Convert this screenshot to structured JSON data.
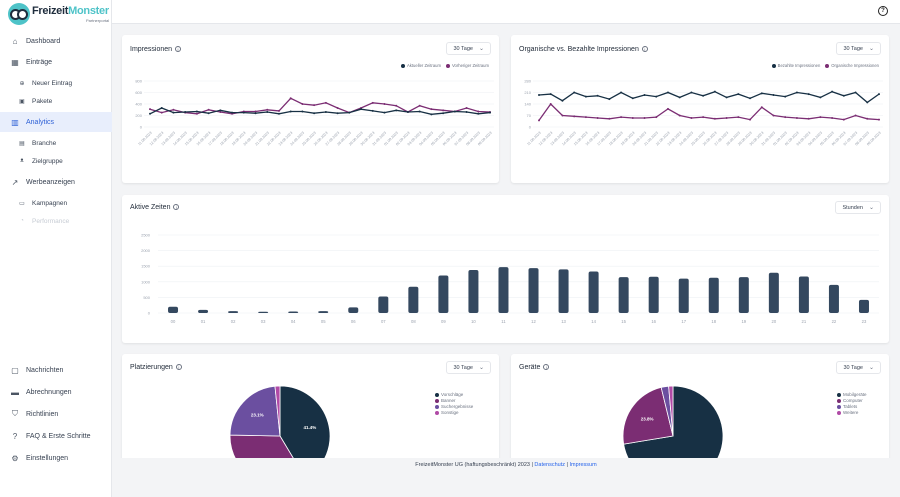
{
  "brand": {
    "name_a": "Freizeit",
    "name_b": "Monster",
    "subtitle": "Partnerportal"
  },
  "nav_top": [
    {
      "label": "Dashboard",
      "icon": "home-icon"
    },
    {
      "label": "Einträge",
      "icon": "calendar-icon"
    },
    {
      "label": "Neuer Eintrag",
      "icon": "plus-circle-icon",
      "sub": true
    },
    {
      "label": "Pakete",
      "icon": "package-icon",
      "sub": true
    },
    {
      "label": "Analytics",
      "icon": "bar-chart-icon",
      "active": true
    },
    {
      "label": "Branche",
      "icon": "building-icon",
      "sub": true
    },
    {
      "label": "Zielgruppe",
      "icon": "users-icon",
      "sub": true
    },
    {
      "label": "Werbeanzeigen",
      "icon": "trend-icon"
    },
    {
      "label": "Kampagnen",
      "icon": "monitor-icon",
      "sub": true
    },
    {
      "label": "Performance",
      "icon": "speedometer-icon",
      "sub": true,
      "disabled": true
    }
  ],
  "nav_bottom": [
    {
      "label": "Nachrichten",
      "icon": "message-icon"
    },
    {
      "label": "Abrechnungen",
      "icon": "credit-card-icon"
    },
    {
      "label": "Richtlinien",
      "icon": "shield-icon"
    },
    {
      "label": "FAQ & Erste Schritte",
      "icon": "question-icon"
    },
    {
      "label": "Einstellungen",
      "icon": "gear-icon"
    }
  ],
  "topbar": {
    "help_icon": "help-circle-icon",
    "help_glyph": "?"
  },
  "cards": {
    "impressions": {
      "title": "Impressionen",
      "select": "30 Tage"
    },
    "organic": {
      "title": "Organische vs. Bezahlte Impressionen",
      "select": "30 Tage"
    },
    "active": {
      "title": "Aktive Zeiten",
      "select": "Stunden"
    },
    "placements": {
      "title": "Platzierungen",
      "select": "30 Tage"
    },
    "devices": {
      "title": "Geräte",
      "select": "30 Tage"
    }
  },
  "colors": {
    "dark": "#173044",
    "purple": "#7b2d73",
    "slate": "#34485f",
    "violet": "#6b4fa0",
    "pink": "#b04aa6",
    "accent": "#2c5fd6"
  },
  "footer": {
    "text": "FreizeitMonster UG (haftungsbeschränkt) 2023 |",
    "privacy": "Datenschutz",
    "sep": "|",
    "imprint": "Impressum"
  },
  "chart_data": [
    {
      "type": "line",
      "id": "impressions",
      "x": [
        "11.08.2023",
        "12.08.2023",
        "13.08.2023",
        "14.08.2023",
        "15.08.2023",
        "16.08.2023",
        "17.08.2023",
        "18.08.2023",
        "19.08.2023",
        "20.08.2023",
        "21.08.2023",
        "22.08.2023",
        "23.08.2023",
        "24.08.2023",
        "25.08.2023",
        "26.08.2023",
        "27.08.2023",
        "28.08.2023",
        "29.08.2023",
        "30.08.2023",
        "31.08.2023",
        "01.09.2023",
        "02.09.2023",
        "03.09.2023",
        "04.09.2023",
        "05.09.2023",
        "06.09.2023",
        "07.09.2023",
        "08.09.2023",
        "09.09.2023"
      ],
      "yticks": [
        0,
        200,
        400,
        600,
        800
      ],
      "ylim": [
        0,
        800
      ],
      "series": [
        {
          "name": "Aktueller Zeitraum",
          "color": "#173044",
          "values": [
            230,
            330,
            250,
            260,
            270,
            240,
            290,
            250,
            250,
            240,
            260,
            230,
            270,
            270,
            240,
            260,
            240,
            250,
            310,
            280,
            250,
            290,
            260,
            270,
            220,
            240,
            270,
            260,
            230,
            250
          ]
        },
        {
          "name": "Vorheriger Zeitraum",
          "color": "#7b2d73",
          "values": [
            310,
            250,
            300,
            250,
            230,
            300,
            260,
            230,
            270,
            270,
            300,
            280,
            500,
            400,
            380,
            420,
            330,
            250,
            330,
            420,
            400,
            370,
            260,
            370,
            310,
            290,
            270,
            330,
            270,
            260
          ]
        }
      ]
    },
    {
      "type": "line",
      "id": "organic",
      "x": [
        "11.08.2023",
        "12.08.2023",
        "13.08.2023",
        "14.08.2023",
        "15.08.2023",
        "16.08.2023",
        "17.08.2023",
        "18.08.2023",
        "19.08.2023",
        "20.08.2023",
        "21.08.2023",
        "22.08.2023",
        "23.08.2023",
        "24.08.2023",
        "25.08.2023",
        "26.08.2023",
        "27.08.2023",
        "28.08.2023",
        "29.08.2023",
        "30.08.2023",
        "31.08.2023",
        "01.09.2023",
        "02.09.2023",
        "03.09.2023",
        "04.09.2023",
        "05.09.2023",
        "06.09.2023",
        "07.09.2023",
        "08.09.2023",
        "09.09.2023"
      ],
      "yticks": [
        0,
        70,
        140,
        210,
        280
      ],
      "ylim": [
        0,
        280
      ],
      "series": [
        {
          "name": "Bezahlte Impressionen",
          "color": "#173044",
          "values": [
            195,
            200,
            160,
            210,
            185,
            190,
            170,
            210,
            175,
            195,
            185,
            210,
            180,
            210,
            190,
            215,
            180,
            200,
            175,
            205,
            195,
            185,
            210,
            200,
            180,
            215,
            190,
            210,
            150,
            200
          ]
        },
        {
          "name": "Organische Impressionen",
          "color": "#7b2d73",
          "values": [
            40,
            140,
            70,
            65,
            60,
            55,
            50,
            60,
            55,
            55,
            60,
            110,
            70,
            55,
            60,
            50,
            55,
            60,
            45,
            120,
            70,
            60,
            55,
            50,
            60,
            55,
            45,
            70,
            50,
            45
          ]
        }
      ]
    },
    {
      "type": "bar",
      "id": "active_times",
      "categories": [
        "00",
        "01",
        "02",
        "03",
        "04",
        "05",
        "06",
        "07",
        "08",
        "09",
        "10",
        "11",
        "12",
        "13",
        "14",
        "15",
        "16",
        "17",
        "18",
        "19",
        "20",
        "21",
        "22",
        "23"
      ],
      "yticks": [
        0,
        500,
        1000,
        1500,
        2000,
        2500
      ],
      "ylim": [
        0,
        2500
      ],
      "color": "#34485f",
      "values": [
        200,
        100,
        60,
        40,
        50,
        60,
        180,
        530,
        840,
        1200,
        1380,
        1470,
        1440,
        1400,
        1330,
        1150,
        1160,
        1100,
        1130,
        1150,
        1290,
        1170,
        900,
        420
      ]
    },
    {
      "type": "pie",
      "id": "placements",
      "series": [
        {
          "name": "Vorschläge",
          "color": "#173044",
          "value": 41.4
        },
        {
          "name": "Banner",
          "color": "#7b2d73",
          "value": 33.9
        },
        {
          "name": "Suchergebnisse",
          "color": "#6b4fa0",
          "value": 23.1
        },
        {
          "name": "Sonstige",
          "color": "#b04aa6",
          "value": 1.6
        }
      ],
      "labels": {
        "dark": "41.4%",
        "violet": "23.1%"
      }
    },
    {
      "type": "pie",
      "id": "devices",
      "series": [
        {
          "name": "Mobilgeräte",
          "color": "#173044",
          "value": 72.4
        },
        {
          "name": "Computer",
          "color": "#7b2d73",
          "value": 23.8
        },
        {
          "name": "Tablets",
          "color": "#6b4fa0",
          "value": 2.4
        },
        {
          "name": "Weitere",
          "color": "#b04aa6",
          "value": 1.4
        }
      ],
      "labels": {
        "purple": "23.8%"
      }
    }
  ]
}
